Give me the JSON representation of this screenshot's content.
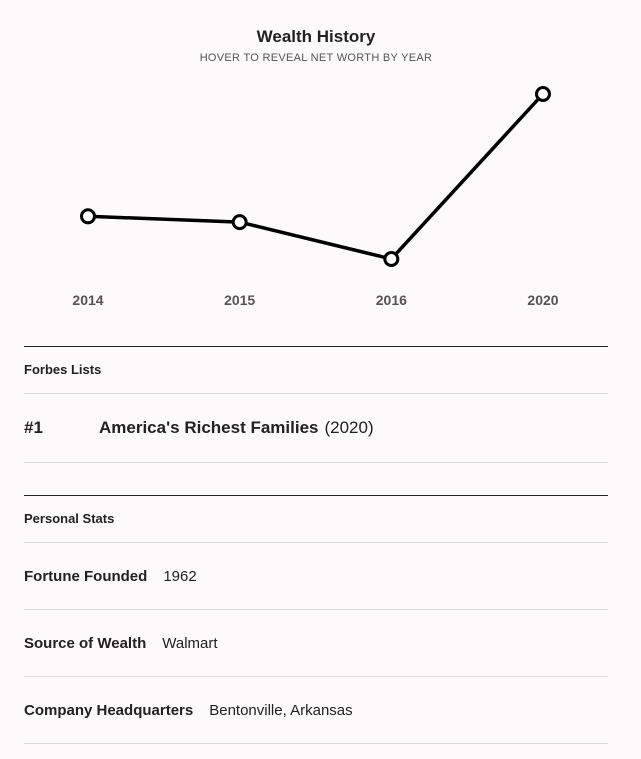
{
  "chart_data": {
    "type": "line",
    "title": "Wealth History",
    "subtitle": "HOVER TO REVEAL NET WORTH BY YEAR",
    "categories": [
      "2014",
      "2015",
      "2016",
      "2020"
    ],
    "series": [
      {
        "values": [
          152,
          149,
          130,
          215
        ]
      }
    ],
    "ylim": [
      120,
      220
    ],
    "grid": false,
    "line_color": "#000000",
    "marker_fill": "#ffffff"
  },
  "forbes_lists": {
    "header": "Forbes Lists",
    "items": [
      {
        "rank": "#1",
        "name": "America's Richest Families",
        "year": "(2020)"
      }
    ]
  },
  "personal_stats": {
    "header": "Personal Stats",
    "items": [
      {
        "label": "Fortune Founded",
        "value": "1962"
      },
      {
        "label": "Source of Wealth",
        "value": "Walmart"
      },
      {
        "label": "Company Headquarters",
        "value": "Bentonville, Arkansas"
      }
    ]
  }
}
